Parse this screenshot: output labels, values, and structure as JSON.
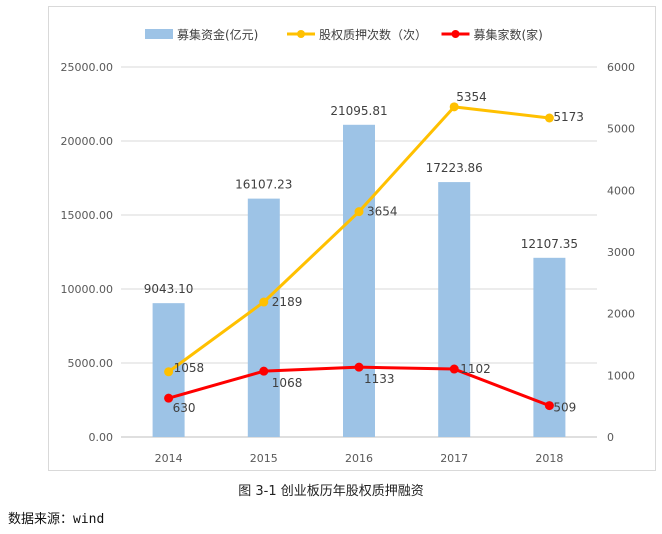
{
  "caption": "图 3-1 创业板历年股权质押融资",
  "source": {
    "label": "数据来源：",
    "value": "wind"
  },
  "chart_data": {
    "type": "bar",
    "categories": [
      "2014",
      "2015",
      "2016",
      "2017",
      "2018"
    ],
    "y_left": {
      "min": 0,
      "max": 25000,
      "ticks": [
        "0.00",
        "5000.00",
        "10000.00",
        "15000.00",
        "20000.00",
        "25000.00"
      ]
    },
    "y_right": {
      "min": 0,
      "max": 6000,
      "ticks": [
        "0",
        "1000",
        "2000",
        "3000",
        "4000",
        "5000",
        "6000"
      ]
    },
    "legend_position": "top",
    "grid": true,
    "series": [
      {
        "name": "募集资金(亿元)",
        "type": "bar",
        "axis": "left",
        "color": "#9dc3e6",
        "values": [
          9043.1,
          16107.23,
          21095.81,
          17223.86,
          12107.35
        ],
        "labels": [
          "9043.10",
          "16107.23",
          "21095.81",
          "17223.86",
          "12107.35"
        ]
      },
      {
        "name": "股权质押次数（次）",
        "type": "line",
        "axis": "right",
        "color": "#ffc000",
        "values": [
          1058,
          2189,
          3654,
          5354,
          5173
        ],
        "labels": [
          "1058",
          "2189",
          "3654",
          "5354",
          "5173"
        ]
      },
      {
        "name": "募集家数(家)",
        "type": "line",
        "axis": "right",
        "color": "#ff0000",
        "values": [
          630,
          1068,
          1133,
          1102,
          509
        ],
        "labels": [
          "630",
          "1068",
          "1133",
          "1102",
          "509"
        ]
      }
    ]
  }
}
